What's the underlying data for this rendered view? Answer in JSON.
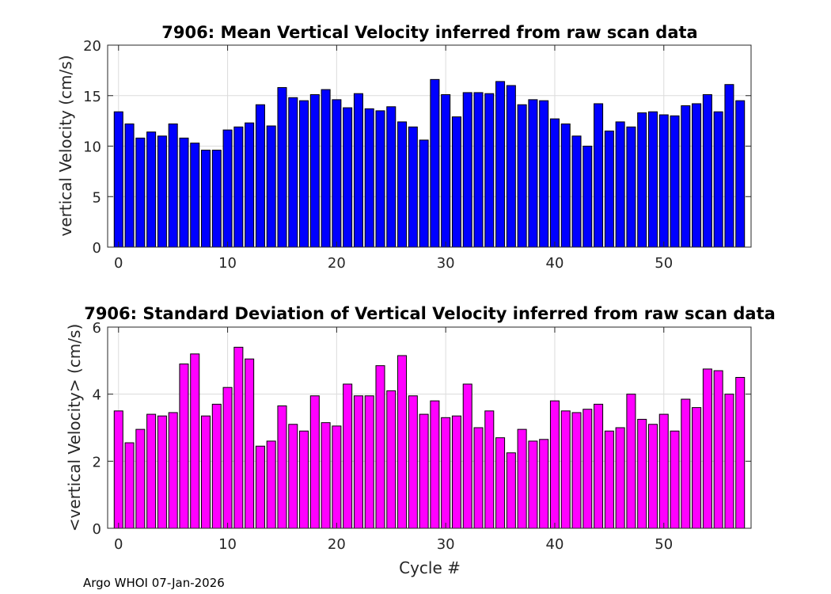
{
  "footer": "Argo WHOI 07-Jan-2026",
  "chart_data": [
    {
      "type": "bar",
      "title": "7906: Mean Vertical Velocity inferred from raw scan data",
      "xlabel": "",
      "ylabel": "vertical Velocity (cm/s)",
      "xlim": [
        -1,
        58
      ],
      "ylim": [
        0,
        20
      ],
      "xticks": [
        0,
        10,
        20,
        30,
        40,
        50
      ],
      "yticks": [
        0,
        5,
        10,
        15,
        20
      ],
      "grid": true,
      "color": "#0000ff",
      "x": [
        0,
        1,
        2,
        3,
        4,
        5,
        6,
        7,
        8,
        9,
        10,
        11,
        12,
        13,
        14,
        15,
        16,
        17,
        18,
        19,
        20,
        21,
        22,
        23,
        24,
        25,
        26,
        27,
        28,
        29,
        30,
        31,
        32,
        33,
        34,
        35,
        36,
        37,
        38,
        39,
        40,
        41,
        42,
        43,
        44,
        45,
        46,
        47,
        48,
        49,
        50,
        51,
        52,
        53,
        54,
        55,
        56,
        57
      ],
      "values": [
        13.4,
        12.2,
        10.8,
        11.4,
        11.0,
        12.2,
        10.8,
        10.3,
        9.6,
        9.6,
        11.6,
        11.9,
        12.3,
        14.1,
        12.0,
        15.8,
        14.8,
        14.5,
        15.1,
        15.6,
        14.6,
        13.8,
        15.2,
        13.7,
        13.5,
        13.9,
        12.4,
        11.9,
        10.6,
        16.6,
        15.1,
        12.9,
        15.3,
        15.3,
        15.2,
        16.4,
        16.0,
        14.1,
        14.6,
        14.5,
        12.7,
        12.2,
        11.0,
        10.0,
        14.2,
        11.5,
        12.4,
        11.9,
        13.3,
        13.4,
        13.1,
        13.0,
        14.0,
        14.2,
        15.1,
        13.4,
        16.1,
        14.5
      ]
    },
    {
      "type": "bar",
      "title": "7906: Standard Deviation of Vertical Velocity inferred from raw scan data",
      "xlabel": "Cycle #",
      "ylabel": "<vertical Velocity> (cm/s)",
      "xlim": [
        -1,
        58
      ],
      "ylim": [
        0,
        6
      ],
      "xticks": [
        0,
        10,
        20,
        30,
        40,
        50
      ],
      "yticks": [
        0,
        2,
        4,
        6
      ],
      "grid": true,
      "color": "#ff00ff",
      "x": [
        0,
        1,
        2,
        3,
        4,
        5,
        6,
        7,
        8,
        9,
        10,
        11,
        12,
        13,
        14,
        15,
        16,
        17,
        18,
        19,
        20,
        21,
        22,
        23,
        24,
        25,
        26,
        27,
        28,
        29,
        30,
        31,
        32,
        33,
        34,
        35,
        36,
        37,
        38,
        39,
        40,
        41,
        42,
        43,
        44,
        45,
        46,
        47,
        48,
        49,
        50,
        51,
        52,
        53,
        54,
        55,
        56,
        57
      ],
      "values": [
        3.5,
        2.55,
        2.95,
        3.4,
        3.35,
        3.45,
        4.9,
        5.2,
        3.35,
        3.7,
        4.2,
        5.4,
        5.05,
        2.45,
        2.6,
        3.65,
        3.1,
        2.9,
        3.95,
        3.15,
        3.05,
        4.3,
        3.95,
        3.95,
        4.85,
        4.1,
        5.15,
        3.95,
        3.4,
        3.8,
        3.3,
        3.35,
        4.3,
        3.0,
        3.5,
        2.7,
        2.25,
        2.95,
        2.6,
        2.65,
        3.8,
        3.5,
        3.45,
        3.55,
        3.7,
        2.9,
        3.0,
        4.0,
        3.25,
        3.1,
        3.4,
        2.9,
        3.85,
        3.6,
        4.75,
        4.7,
        4.0,
        4.5
      ]
    }
  ]
}
